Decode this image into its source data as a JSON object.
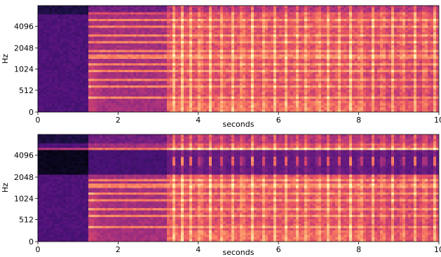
{
  "chart_data": [
    {
      "type": "heatmap",
      "subtype": "mel-spectrogram",
      "colormap": "magma",
      "xlabel": "seconds",
      "ylabel": "Hz",
      "xlim": [
        0,
        10
      ],
      "y_scale": "mel",
      "x_ticks": [
        0,
        2,
        4,
        6,
        8,
        10
      ],
      "x_tick_labels": [
        "0",
        "2",
        "4",
        "6",
        "8",
        "10"
      ],
      "y_ticks": [
        0,
        512,
        1024,
        2048,
        4096
      ],
      "y_tick_labels": [
        "0",
        "512",
        "1024",
        "2048",
        "4096"
      ],
      "y_ticks_mel_frac": [
        0,
        0.2052,
        0.4034,
        0.6018,
        0.8062
      ],
      "grid": false,
      "events": {
        "onset_s": 1.25,
        "dense_start_s": 3.2,
        "dense_end_s": 8.2,
        "percussive_pulses_s": [
          3.4,
          3.6,
          3.8,
          4.05,
          4.3,
          4.6,
          4.85,
          5.1,
          5.35,
          5.65,
          5.9,
          6.2,
          6.45,
          6.7,
          7.0,
          7.25,
          7.5,
          7.8,
          8.05,
          8.35,
          8.6,
          8.85,
          9.1,
          9.4,
          9.65,
          9.9
        ],
        "harmonic_bands_frac": [
          0.14,
          0.24,
          0.31,
          0.38,
          0.44,
          0.52,
          0.58,
          0.66,
          0.72,
          0.8,
          0.86,
          0.92
        ]
      }
    },
    {
      "type": "heatmap",
      "subtype": "mel-spectrogram",
      "colormap": "magma",
      "xlabel": "seconds",
      "ylabel": "Hz",
      "xlim": [
        0,
        10
      ],
      "y_scale": "mel",
      "x_ticks": [
        0,
        2,
        4,
        6,
        8,
        10
      ],
      "x_tick_labels": [
        "0",
        "2",
        "4",
        "6",
        "8",
        "10"
      ],
      "y_ticks": [
        0,
        512,
        1024,
        2048,
        4096
      ],
      "y_tick_labels": [
        "0",
        "512",
        "1024",
        "2048",
        "4096"
      ],
      "y_ticks_mel_frac": [
        0,
        0.2052,
        0.4034,
        0.6018,
        0.8062
      ],
      "grid": false,
      "events": {
        "onset_s": 1.25,
        "dense_start_s": 3.2,
        "dense_end_s": 8.2,
        "filtered_band_hz": [
          2300,
          4700
        ],
        "percussive_pulses_s": [
          3.4,
          3.6,
          3.8,
          4.05,
          4.3,
          4.6,
          4.85,
          5.1,
          5.35,
          5.65,
          5.9,
          6.2,
          6.45,
          6.7,
          7.0,
          7.25,
          7.5,
          7.8,
          8.05,
          8.35,
          8.6,
          8.85,
          9.1,
          9.4,
          9.65,
          9.9
        ],
        "harmonic_bands_frac": [
          0.14,
          0.24,
          0.31,
          0.38,
          0.44,
          0.52,
          0.58
        ]
      }
    }
  ]
}
